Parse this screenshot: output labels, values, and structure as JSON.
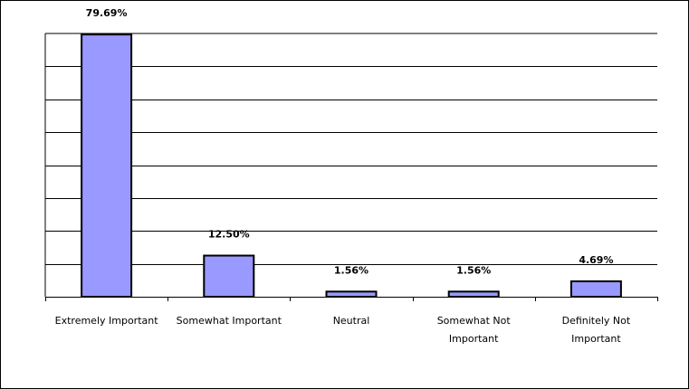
{
  "chart_data": {
    "type": "bar",
    "categories": [
      [
        "Extremely Important"
      ],
      [
        "Somewhat Important"
      ],
      [
        "Neutral"
      ],
      [
        "Somewhat Not",
        "Important"
      ],
      [
        "Definitely Not",
        "Important"
      ]
    ],
    "values": [
      79.69,
      12.5,
      1.56,
      1.56,
      4.69
    ],
    "data_labels": [
      "79.69%",
      "12.50%",
      "1.56%",
      "1.56%",
      "4.69%"
    ],
    "title": "",
    "xlabel": "",
    "ylabel": "",
    "ylim": [
      0,
      80
    ],
    "grid": true,
    "legend": "none",
    "colors": {
      "bar_fill": "#9999ff",
      "bar_stroke": "#000000",
      "grid": "#000000",
      "frame": "#000000"
    }
  }
}
